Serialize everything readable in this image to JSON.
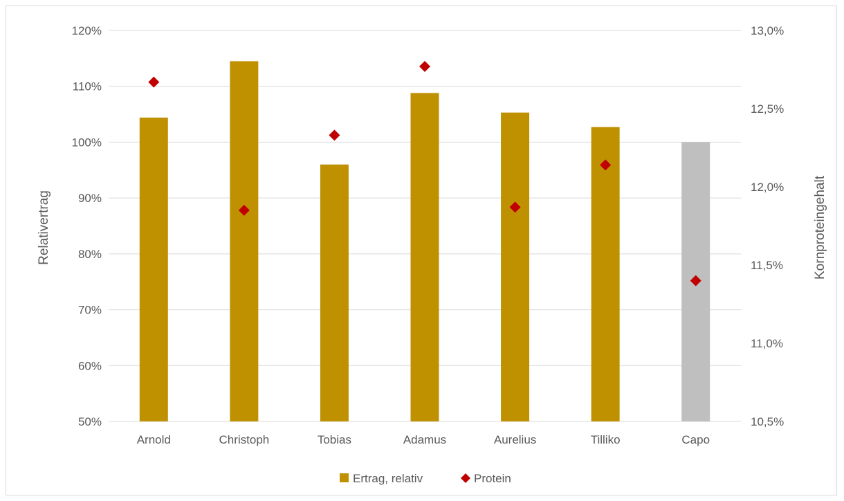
{
  "chart_data": {
    "type": "bar",
    "categories": [
      "Arnold",
      "Christoph",
      "Tobias",
      "Adamus",
      "Aurelius",
      "Tilliko",
      "Capo"
    ],
    "series": [
      {
        "name": "Ertrag, relativ",
        "type": "bar",
        "axis": "left",
        "values": [
          104.4,
          114.5,
          96.0,
          108.8,
          105.3,
          102.7,
          100.0
        ],
        "colors": [
          "#BF9000",
          "#BF9000",
          "#BF9000",
          "#BF9000",
          "#BF9000",
          "#BF9000",
          "#BFBFBF"
        ]
      },
      {
        "name": "Protein",
        "type": "scatter",
        "marker": "diamond",
        "axis": "right",
        "color": "#C00000",
        "values": [
          12.67,
          11.85,
          12.33,
          12.77,
          11.87,
          12.14,
          11.4
        ]
      }
    ],
    "ylabel": "Relativertrag",
    "y2label": "Kornproteingehalt",
    "ylim": [
      50,
      120
    ],
    "y_ticks": [
      50,
      60,
      70,
      80,
      90,
      100,
      110,
      120
    ],
    "y_tick_labels": [
      "50%",
      "60%",
      "70%",
      "80%",
      "90%",
      "100%",
      "110%",
      "120%"
    ],
    "y2lim": [
      10.5,
      13.0
    ],
    "y2_ticks": [
      10.5,
      11.0,
      11.5,
      12.0,
      12.5,
      13.0
    ],
    "y2_tick_labels": [
      "10,5%",
      "11,0%",
      "11,5%",
      "12,0%",
      "12,5%",
      "13,0%"
    ],
    "grid": true,
    "legend": "bottom",
    "legend_items": [
      "Ertrag, relativ",
      "Protein"
    ]
  }
}
